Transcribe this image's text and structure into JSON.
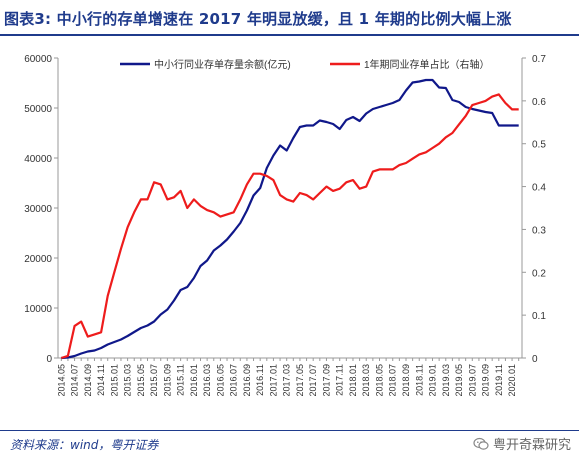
{
  "header": {
    "title": "图表3:   中小行的存单增速在 2017 年明显放缓，且 1 年期的比例大幅上涨"
  },
  "footer": {
    "source": "资料来源：wind，粤开证券",
    "watermark": "粤开奇霖研究"
  },
  "colors": {
    "title": "#1f3b8c",
    "series_left": "#10188a",
    "series_right": "#ee1c1c"
  },
  "chart_data": {
    "type": "line",
    "title": "",
    "legend_position": "top",
    "grid": false,
    "x": [
      "2014.05",
      "2014.06",
      "2014.07",
      "2014.08",
      "2014.09",
      "2014.10",
      "2014.11",
      "2014.12",
      "2015.01",
      "2015.02",
      "2015.03",
      "2015.04",
      "2015.05",
      "2015.06",
      "2015.07",
      "2015.08",
      "2015.09",
      "2015.10",
      "2015.11",
      "2015.12",
      "2016.01",
      "2016.02",
      "2016.03",
      "2016.04",
      "2016.05",
      "2016.06",
      "2016.07",
      "2016.08",
      "2016.09",
      "2016.10",
      "2016.11",
      "2016.12",
      "2017.01",
      "2017.02",
      "2017.03",
      "2017.04",
      "2017.05",
      "2017.06",
      "2017.07",
      "2017.08",
      "2017.09",
      "2017.10",
      "2017.11",
      "2017.12",
      "2018.01",
      "2018.02",
      "2018.03",
      "2018.04",
      "2018.05",
      "2018.06",
      "2018.07",
      "2018.08",
      "2018.09",
      "2018.10",
      "2018.11",
      "2018.12",
      "2019.01",
      "2019.02",
      "2019.03",
      "2019.04",
      "2019.05",
      "2019.06",
      "2019.07",
      "2019.08",
      "2019.09",
      "2019.10",
      "2019.11",
      "2019.12",
      "2020.01",
      "2020.02"
    ],
    "x_tick_labels": [
      "2014.05",
      "2014.07",
      "2014.09",
      "2014.11",
      "2015.01",
      "2015.03",
      "2015.05",
      "2015.07",
      "2015.09",
      "2015.11",
      "2016.01",
      "2016.03",
      "2016.05",
      "2016.07",
      "2016.09",
      "2016.11",
      "2017.01",
      "2017.03",
      "2017.05",
      "2017.07",
      "2017.09",
      "2017.11",
      "2018.01",
      "2018.03",
      "2018.05",
      "2018.07",
      "2018.09",
      "2018.11",
      "2019.01",
      "2019.03",
      "2019.05",
      "2019.07",
      "2019.09",
      "2019.11",
      "2020.01"
    ],
    "y_left": {
      "min": 0,
      "max": 60000,
      "ticks": [
        0,
        10000,
        20000,
        30000,
        40000,
        50000,
        60000
      ]
    },
    "y_right": {
      "min": 0,
      "max": 0.7,
      "ticks": [
        "0",
        "0.1",
        "0.2",
        "0.3",
        "0.4",
        "0.5",
        "0.6",
        "0.7"
      ]
    },
    "series": [
      {
        "name": "中小行同业存单存量余额(亿元)",
        "axis": "left",
        "color": "#10188a",
        "values": [
          0,
          100,
          400,
          900,
          1300,
          1500,
          2000,
          2700,
          3200,
          3700,
          4400,
          5200,
          6000,
          6500,
          7300,
          8700,
          9700,
          11500,
          13600,
          14200,
          16000,
          18400,
          19500,
          21500,
          22500,
          23700,
          25300,
          27000,
          29500,
          32500,
          34000,
          38000,
          40500,
          42500,
          41500,
          44000,
          46200,
          46500,
          46500,
          47500,
          47200,
          46800,
          45800,
          47600,
          48200,
          47400,
          48900,
          49800,
          50200,
          50600,
          51000,
          51600,
          53500,
          55100,
          55300,
          55600,
          55600,
          54100,
          54000,
          51600,
          51200,
          50200,
          49800,
          49500,
          49200,
          49000,
          46500,
          46500,
          46500,
          46500
        ]
      },
      {
        "name": "1年期同业存单占比（右轴）",
        "axis": "right",
        "color": "#ee1c1c",
        "values": [
          0,
          0.005,
          0.075,
          0.085,
          0.05,
          0.055,
          0.06,
          0.145,
          0.2,
          0.255,
          0.305,
          0.34,
          0.37,
          0.37,
          0.41,
          0.405,
          0.37,
          0.375,
          0.39,
          0.35,
          0.37,
          0.355,
          0.345,
          0.34,
          0.33,
          0.335,
          0.34,
          0.37,
          0.405,
          0.43,
          0.43,
          0.425,
          0.415,
          0.38,
          0.37,
          0.365,
          0.385,
          0.38,
          0.37,
          0.385,
          0.4,
          0.39,
          0.395,
          0.41,
          0.415,
          0.395,
          0.4,
          0.435,
          0.44,
          0.44,
          0.44,
          0.45,
          0.455,
          0.465,
          0.475,
          0.48,
          0.49,
          0.5,
          0.515,
          0.525,
          0.545,
          0.565,
          0.59,
          0.595,
          0.6,
          0.61,
          0.615,
          0.595,
          0.58,
          0.58
        ]
      }
    ]
  }
}
